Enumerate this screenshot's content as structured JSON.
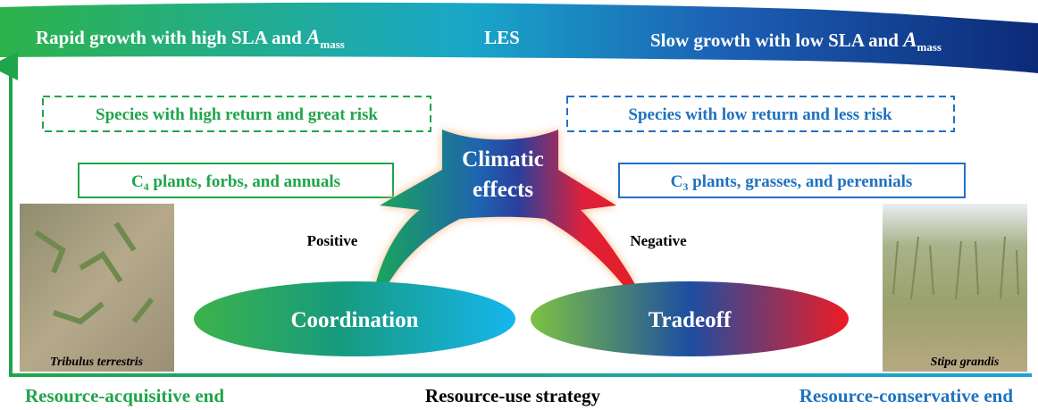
{
  "header": {
    "left": {
      "text": "Rapid growth with high SLA and ",
      "symbol": "A",
      "subscript": "mass"
    },
    "center": "LES",
    "right": {
      "text": "Slow growth with low SLA and ",
      "symbol": "A",
      "subscript": "mass"
    }
  },
  "risk_boxes": [
    {
      "text": "Species with high return and great risk"
    },
    {
      "text": "Species with low return and less risk"
    }
  ],
  "group_boxes": [
    {
      "prefix": "C",
      "subscript": "4",
      "text": " plants, forbs, and annuals"
    },
    {
      "prefix": "C",
      "subscript": "3",
      "text": " plants, grasses, and perennials"
    }
  ],
  "center": {
    "line1": "Climatic",
    "line2": "effects"
  },
  "effects": [
    "Positive",
    "Negative"
  ],
  "outcomes": [
    "Coordination",
    "Tradeoff"
  ],
  "photos": [
    "Tribulus terrestris",
    "Stipa grandis"
  ],
  "footer": {
    "left": "Resource-acquisitive end",
    "center": "Resource-use strategy",
    "right": "Resource-conservative end"
  }
}
